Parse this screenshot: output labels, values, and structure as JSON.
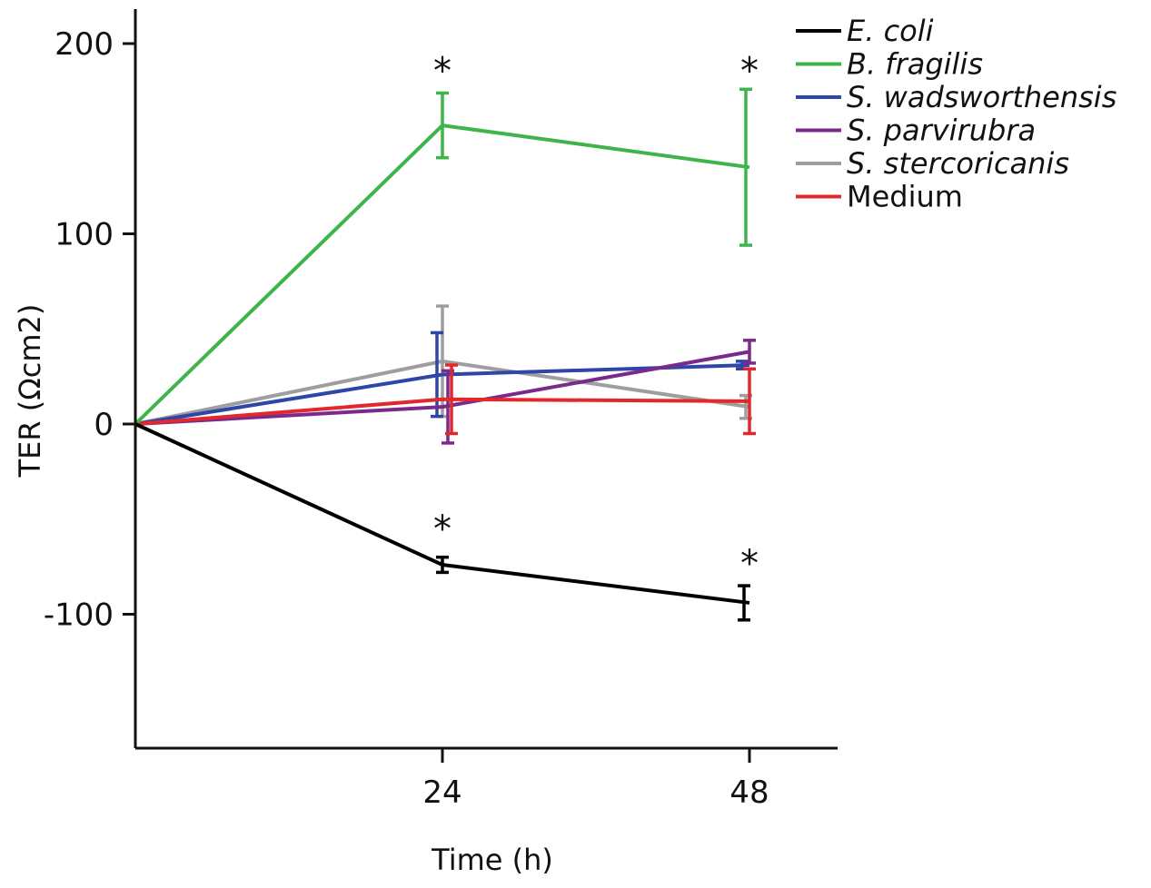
{
  "chart_data": {
    "type": "line",
    "title": "",
    "xlabel": "Time (h)",
    "ylabel": "TER (Ωcm2)",
    "x": [
      0,
      24,
      48
    ],
    "xticks": [
      24,
      48
    ],
    "xlim": [
      0,
      56
    ],
    "ylim": [
      -170,
      210
    ],
    "yticks": [
      200,
      100,
      0,
      -100
    ],
    "yticklabels": [
      "200",
      "100",
      "0",
      "-100"
    ],
    "legend_position": "top-right",
    "grid": false,
    "series": [
      {
        "name": "E. coli",
        "italic": true,
        "color": "#000000",
        "values": [
          0,
          -74,
          -94
        ],
        "errors": [
          0,
          4,
          9
        ]
      },
      {
        "name": "B. fragilis",
        "italic": true,
        "color": "#3db54a",
        "values": [
          0,
          157,
          135
        ],
        "errors": [
          0,
          17,
          41
        ]
      },
      {
        "name": "S. wadsworthensis",
        "italic": true,
        "color": "#2e46a6",
        "values": [
          0,
          26,
          31
        ],
        "errors": [
          0,
          22,
          2
        ]
      },
      {
        "name": "S. parvirubra",
        "italic": true,
        "color": "#7b2a8c",
        "values": [
          0,
          9,
          38
        ],
        "errors": [
          0,
          19,
          6
        ]
      },
      {
        "name": "S. stercoricanis",
        "italic": true,
        "color": "#9e9e9e",
        "values": [
          0,
          33,
          9
        ],
        "errors": [
          0,
          29,
          6
        ]
      },
      {
        "name": "Medium",
        "italic": false,
        "color": "#e0282d",
        "values": [
          0,
          13,
          12
        ],
        "errors": [
          0,
          18,
          17
        ]
      }
    ],
    "annotations": [
      {
        "text": "*",
        "x": 24,
        "y": 186
      },
      {
        "text": "*",
        "x": 48,
        "y": 186
      },
      {
        "text": "*",
        "x": 24,
        "y": -55
      },
      {
        "text": "*",
        "x": 48,
        "y": -73
      }
    ]
  }
}
